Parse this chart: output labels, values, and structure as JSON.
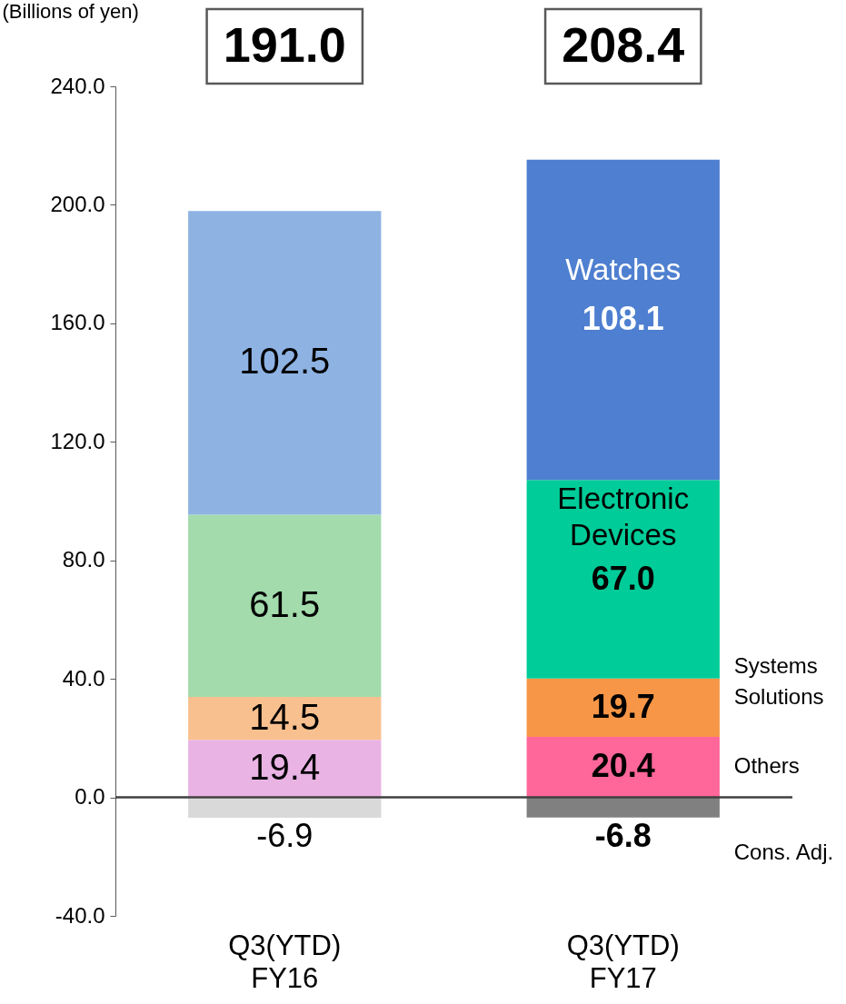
{
  "chart_data": {
    "type": "bar",
    "stacked": true,
    "ylabel": "(Billions of yen)",
    "categories": [
      "Q3(YTD)\nFY16",
      "Q3(YTD)\nFY17"
    ],
    "series": [
      {
        "name": "Others",
        "colors": [
          "#e9b3e4",
          "#ff6699"
        ],
        "values": [
          19.4,
          20.4
        ],
        "value_labels": [
          "19.4",
          "20.4"
        ]
      },
      {
        "name": "Systems Solutions",
        "colors": [
          "#f9c08f",
          "#f79646"
        ],
        "values": [
          14.5,
          19.7
        ],
        "value_labels": [
          "14.5",
          "19.7"
        ]
      },
      {
        "name": "Electronic Devices",
        "colors": [
          "#a3dbac",
          "#00cc99"
        ],
        "values": [
          61.5,
          67.0
        ],
        "value_labels": [
          "61.5",
          "67.0"
        ]
      },
      {
        "name": "Watches",
        "colors": [
          "#8eb3e3",
          "#4e7fd0"
        ],
        "values": [
          102.5,
          108.1
        ],
        "value_labels": [
          "102.5",
          "108.1"
        ]
      },
      {
        "name": "Cons. Adj.",
        "colors": [
          "#d9d9d9",
          "#808080"
        ],
        "values": [
          -6.9,
          -6.8
        ],
        "value_labels": [
          "-6.9",
          "-6.8"
        ]
      }
    ],
    "totals": [
      "191.0",
      "208.4"
    ],
    "ylim": [
      -40,
      240
    ],
    "yticks": [
      {
        "value": -40,
        "label": "-40.0"
      },
      {
        "value": 0,
        "label": "0.0"
      },
      {
        "value": 40,
        "label": "40.0"
      },
      {
        "value": 80,
        "label": "80.0"
      },
      {
        "value": 120,
        "label": "120.0"
      },
      {
        "value": 160,
        "label": "160.0"
      },
      {
        "value": 200,
        "label": "200.0"
      },
      {
        "value": 240,
        "label": "240.0"
      }
    ],
    "ref_lines": [
      {
        "axis": "y",
        "value": 0,
        "color": "#404040"
      }
    ],
    "grid": false,
    "legend": false
  }
}
